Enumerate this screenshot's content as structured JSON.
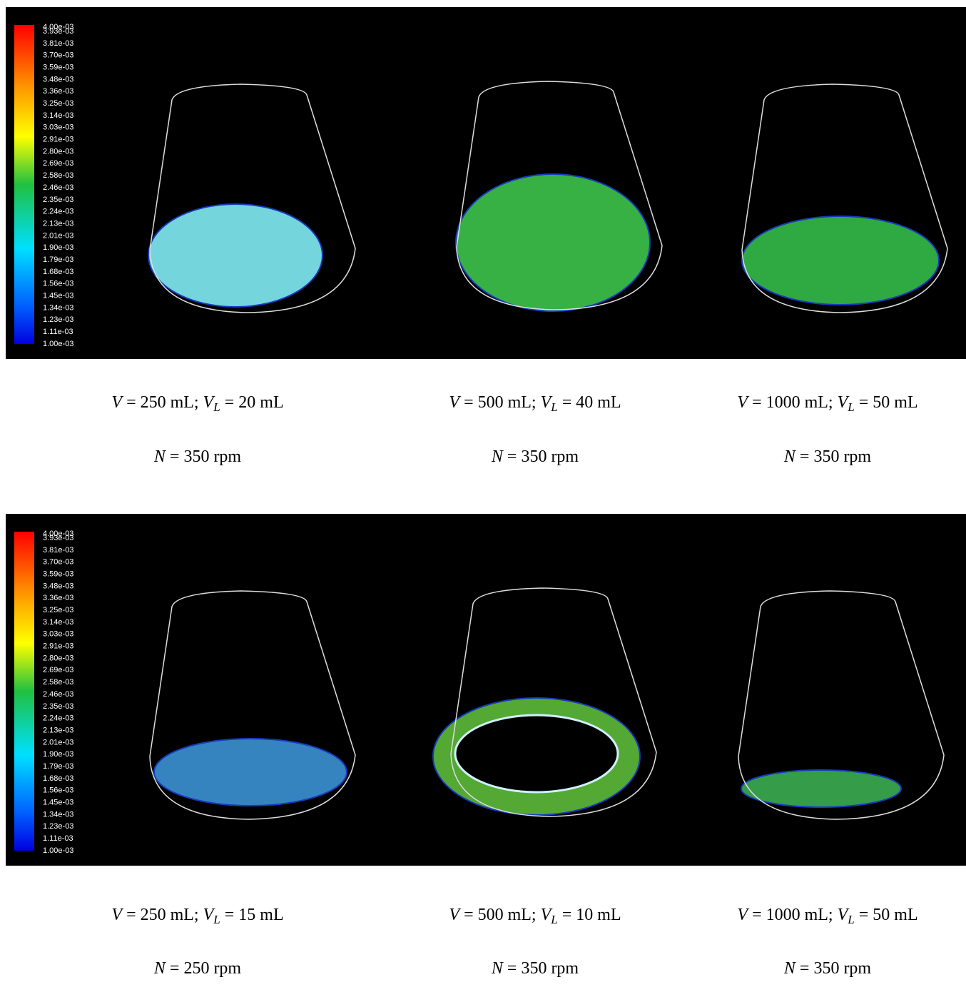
{
  "panels": [
    {
      "colorbar_labels": [
        "4.00e-03",
        "3.93e-03",
        "3.81e-03",
        "3.70e-03",
        "3.59e-03",
        "3.48e-03",
        "3.36e-03",
        "3.25e-03",
        "3.14e-03",
        "3.03e-03",
        "2.91e-03",
        "2.80e-03",
        "2.69e-03",
        "2.58e-03",
        "2.46e-03",
        "2.35e-03",
        "2.24e-03",
        "2.13e-03",
        "2.01e-03",
        "1.90e-03",
        "1.79e-03",
        "1.68e-03",
        "1.56e-03",
        "1.45e-03",
        "1.34e-03",
        "1.23e-03",
        "1.11e-03",
        "1.00e-03"
      ],
      "captions": [
        {
          "line1": [
            [
              "V",
              "i"
            ],
            [
              " = 250 mL; ",
              ""
            ],
            [
              "V",
              "i"
            ],
            [
              "L",
              "sub"
            ],
            [
              " = 20 mL",
              ""
            ]
          ],
          "line2": [
            [
              "N",
              "i"
            ],
            [
              " = 350 rpm",
              ""
            ]
          ]
        },
        {
          "line1": [
            [
              "V",
              "i"
            ],
            [
              " = 500 mL; ",
              ""
            ],
            [
              "V",
              "i"
            ],
            [
              "L",
              "sub"
            ],
            [
              " = 40 mL",
              ""
            ]
          ],
          "line2": [
            [
              "N",
              "i"
            ],
            [
              " = 350 rpm",
              ""
            ]
          ]
        },
        {
          "line1": [
            [
              "V",
              "i"
            ],
            [
              " = 1000 mL; ",
              ""
            ],
            [
              "V",
              "i"
            ],
            [
              "L",
              "sub"
            ],
            [
              " = 50 mL",
              ""
            ]
          ],
          "line2": [
            [
              "N",
              "i"
            ],
            [
              " = 350 rpm",
              ""
            ]
          ]
        }
      ]
    },
    {
      "colorbar_labels": [
        "4.00e-03",
        "3.93e-03",
        "3.81e-03",
        "3.70e-03",
        "3.59e-03",
        "3.48e-03",
        "3.36e-03",
        "3.25e-03",
        "3.14e-03",
        "3.03e-03",
        "2.91e-03",
        "2.80e-03",
        "2.69e-03",
        "2.58e-03",
        "2.46e-03",
        "2.35e-03",
        "2.24e-03",
        "2.13e-03",
        "2.01e-03",
        "1.90e-03",
        "1.79e-03",
        "1.68e-03",
        "1.56e-03",
        "1.45e-03",
        "1.34e-03",
        "1.23e-03",
        "1.11e-03",
        "1.00e-03"
      ],
      "captions": [
        {
          "line1": [
            [
              "V",
              "i"
            ],
            [
              " = 250 mL; ",
              ""
            ],
            [
              "V",
              "i"
            ],
            [
              "L",
              "sub"
            ],
            [
              " = 15 mL",
              ""
            ]
          ],
          "line2": [
            [
              "N",
              "i"
            ],
            [
              " = 250 rpm",
              ""
            ]
          ]
        },
        {
          "line1": [
            [
              "V",
              "i"
            ],
            [
              " = 500 mL; ",
              ""
            ],
            [
              "V",
              "i"
            ],
            [
              "L",
              "sub"
            ],
            [
              " = 10 mL",
              ""
            ]
          ],
          "line2": [
            [
              "N",
              "i"
            ],
            [
              " = 350 rpm",
              ""
            ]
          ]
        },
        {
          "line1": [
            [
              "V",
              "i"
            ],
            [
              " = 1000 mL; ",
              ""
            ],
            [
              "V",
              "i"
            ],
            [
              "L",
              "sub"
            ],
            [
              " = 50 mL",
              ""
            ]
          ],
          "line2": [
            [
              "N",
              "i"
            ],
            [
              " = 350 rpm",
              ""
            ]
          ]
        }
      ]
    }
  ]
}
